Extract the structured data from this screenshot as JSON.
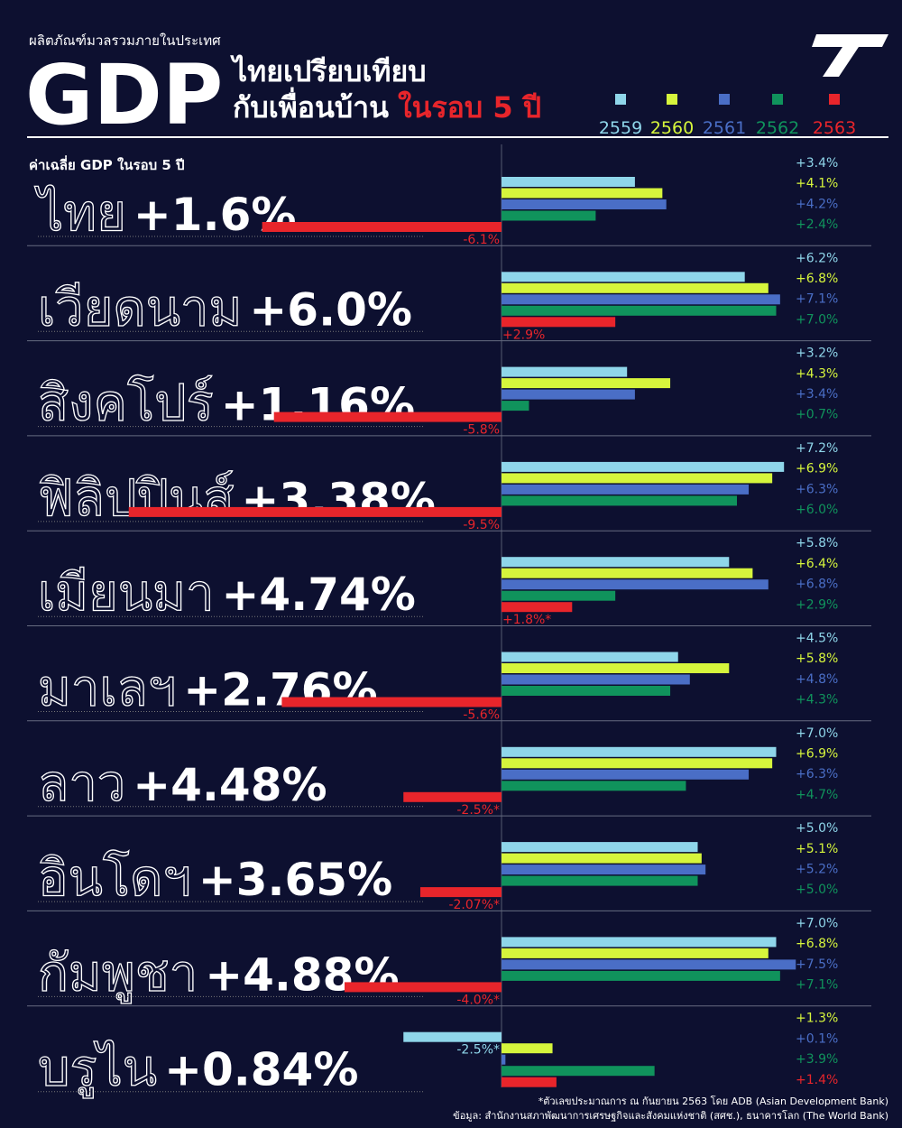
{
  "chart_data": {
    "type": "bar",
    "kicker": "ผลิตภัณฑ์มวลรวมภายในประเทศ",
    "title": "GDP",
    "title_line1": "ไทยเปรียบเทียบ",
    "title_line2": "กับเพื่อนบ้าน",
    "title_highlight": "ในรอบ 5 ปี",
    "subtitle": "ค่าเฉลี่ย GDP ในรอบ 5 ปี",
    "xlim": [
      -10,
      8
    ],
    "series": [
      {
        "name": "2559",
        "color": "#8fd6ea"
      },
      {
        "name": "2560",
        "color": "#d6f53c"
      },
      {
        "name": "2561",
        "color": "#4a6ec6"
      },
      {
        "name": "2562",
        "color": "#10935c"
      },
      {
        "name": "2563",
        "color": "#e8252b"
      }
    ],
    "countries": [
      {
        "name": "ไทย",
        "average": "+1.6%",
        "values": [
          3.4,
          4.1,
          4.2,
          2.4,
          -6.1
        ],
        "value_labels": [
          "+3.4%",
          "+4.1%",
          "+4.2%",
          "+2.4%",
          "-6.1%"
        ]
      },
      {
        "name": "เวียดนาม",
        "average": "+6.0%",
        "values": [
          6.2,
          6.8,
          7.1,
          7.0,
          2.9
        ],
        "value_labels": [
          "+6.2%",
          "+6.8%",
          "+7.1%",
          "+7.0%",
          "+2.9%"
        ]
      },
      {
        "name": "สิงคโปร์",
        "average": "+1.16%",
        "values": [
          3.2,
          4.3,
          3.4,
          0.7,
          -5.8
        ],
        "value_labels": [
          "+3.2%",
          "+4.3%",
          "+3.4%",
          "+0.7%",
          "-5.8%"
        ]
      },
      {
        "name": "ฟิลิปปินส์",
        "average": "+3.38%",
        "values": [
          7.2,
          6.9,
          6.3,
          6.0,
          -9.5
        ],
        "value_labels": [
          "+7.2%",
          "+6.9%",
          "+6.3%",
          "+6.0%",
          "-9.5%"
        ]
      },
      {
        "name": "เมียนมา",
        "average": "+4.74%",
        "values": [
          5.8,
          6.4,
          6.8,
          2.9,
          1.8
        ],
        "value_labels": [
          "+5.8%",
          "+6.4%",
          "+6.8%",
          "+2.9%",
          "+1.8%*"
        ]
      },
      {
        "name": "มาเลฯ",
        "average": "+2.76%",
        "values": [
          4.5,
          5.8,
          4.8,
          4.3,
          -5.6
        ],
        "value_labels": [
          "+4.5%",
          "+5.8%",
          "+4.8%",
          "+4.3%",
          "-5.6%"
        ]
      },
      {
        "name": "ลาว",
        "average": "+4.48%",
        "values": [
          7.0,
          6.9,
          6.3,
          4.7,
          -2.5
        ],
        "value_labels": [
          "+7.0%",
          "+6.9%",
          "+6.3%",
          "+4.7%",
          "-2.5%*"
        ]
      },
      {
        "name": "อินโดฯ",
        "average": "+3.65%",
        "values": [
          5.0,
          5.1,
          5.2,
          5.0,
          -2.07
        ],
        "value_labels": [
          "+5.0%",
          "+5.1%",
          "+5.2%",
          "+5.0%",
          "-2.07%*"
        ]
      },
      {
        "name": "กัมพูชา",
        "average": "+4.88%",
        "values": [
          7.0,
          6.8,
          7.5,
          7.1,
          -4.0
        ],
        "value_labels": [
          "+7.0%",
          "+6.8%",
          "+7.5%",
          "+7.1%",
          "-4.0%*"
        ]
      },
      {
        "name": "บรูไน",
        "average": "+0.84%",
        "values": [
          -2.5,
          1.3,
          0.1,
          3.9,
          1.4
        ],
        "value_labels": [
          "-2.5%*",
          "+1.3%",
          "+0.1%",
          "+3.9%",
          "+1.4%"
        ]
      }
    ],
    "footnote": "*ตัวเลขประมาณการ ณ กันยายน 2563 โดย ADB (Asian Development Bank)",
    "source": "ข้อมูล: สำนักงานสภาพัฒนาการเศรษฐกิจและสังคมแห่งชาติ (สศช.), ธนาคารโลก (The World Bank)"
  }
}
